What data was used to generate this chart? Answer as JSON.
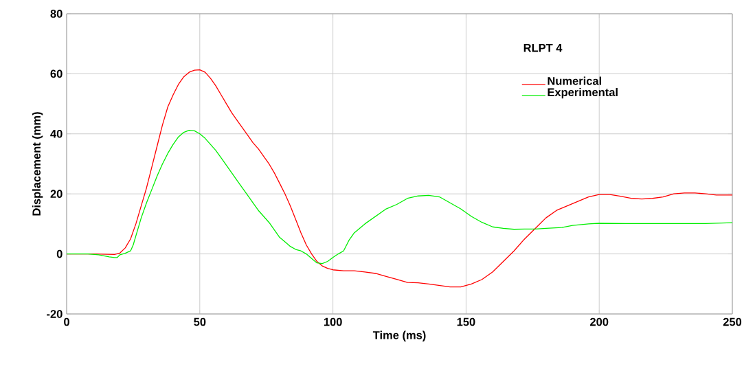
{
  "chart_data": {
    "type": "line",
    "xlabel": "Time (ms)",
    "ylabel": "Displacement (mm)",
    "legend_title": "RLPT 4",
    "xlim": [
      0,
      250
    ],
    "ylim": [
      -20,
      80
    ],
    "xticks": [
      0,
      50,
      100,
      150,
      200,
      250
    ],
    "yticks": [
      -20,
      0,
      20,
      40,
      60,
      80
    ],
    "grid": true,
    "legend": "top right",
    "marker": "none",
    "line_style": "solid",
    "series": [
      {
        "name": "Numerical",
        "color": "#ff0000",
        "x": [
          0,
          10,
          18,
          20,
          22,
          24,
          26,
          28,
          30,
          32,
          34,
          36,
          38,
          40,
          42,
          44,
          46,
          48,
          50,
          52,
          54,
          56,
          58,
          60,
          62,
          64,
          66,
          68,
          70,
          72,
          74,
          76,
          78,
          80,
          82,
          84,
          86,
          88,
          90,
          92,
          94,
          96,
          98,
          100,
          104,
          108,
          112,
          116,
          120,
          124,
          128,
          132,
          136,
          140,
          144,
          148,
          152,
          156,
          160,
          164,
          168,
          172,
          176,
          180,
          184,
          188,
          192,
          196,
          200,
          204,
          208,
          212,
          216,
          220,
          224,
          228,
          232,
          236,
          240,
          244,
          250
        ],
        "values": [
          0,
          0,
          -0.2,
          0.3,
          2,
          5,
          10,
          16,
          22,
          29,
          36,
          43,
          49,
          53,
          56.5,
          59,
          60.5,
          61.2,
          61.3,
          60.5,
          58.5,
          56,
          53,
          50,
          47,
          44.5,
          42,
          39.5,
          37,
          35,
          32.5,
          30,
          27,
          23.5,
          20,
          16,
          11.5,
          7,
          3,
          0,
          -2.5,
          -4,
          -4.8,
          -5.3,
          -5.6,
          -5.6,
          -6,
          -6.5,
          -7.5,
          -8.5,
          -9.5,
          -9.6,
          -10,
          -10.5,
          -11,
          -11,
          -10,
          -8.5,
          -6,
          -2.5,
          1,
          5,
          8.5,
          12,
          14.5,
          16,
          17.5,
          19,
          19.8,
          19.8,
          19.2,
          18.5,
          18.3,
          18.5,
          19,
          20,
          20.3,
          20.3,
          20,
          19.6,
          19.6
        ]
      },
      {
        "name": "Experimental",
        "color": "#00ee00",
        "x": [
          0,
          8,
          12,
          16,
          18,
          19,
          20,
          22,
          24,
          25,
          26,
          28,
          30,
          32,
          34,
          36,
          38,
          40,
          42,
          44,
          46,
          48,
          50,
          52,
          54,
          56,
          58,
          60,
          62,
          64,
          66,
          68,
          70,
          72,
          74,
          76,
          78,
          80,
          82,
          84,
          86,
          88,
          90,
          92,
          94,
          96,
          98,
          100,
          102,
          104,
          106,
          108,
          112,
          116,
          120,
          124,
          128,
          132,
          136,
          140,
          144,
          148,
          152,
          156,
          160,
          164,
          168,
          172,
          176,
          180,
          186,
          190,
          196,
          200,
          210,
          230,
          240,
          250
        ],
        "values": [
          0,
          0,
          -0.3,
          -1,
          -1.2,
          -1.2,
          -0.3,
          0.2,
          1,
          3,
          6,
          12,
          17,
          21.5,
          26,
          30,
          33.5,
          36.5,
          39,
          40.5,
          41.2,
          41,
          40,
          38.5,
          36.5,
          34.5,
          32,
          29.5,
          27,
          24.5,
          22,
          19.5,
          17,
          14.5,
          12.5,
          10.5,
          8,
          5.5,
          4,
          2.5,
          1.5,
          1,
          0,
          -1.5,
          -3,
          -3.2,
          -2.5,
          -1.2,
          0,
          1,
          4.5,
          7,
          10,
          12.5,
          15,
          16.5,
          18.5,
          19.3,
          19.5,
          19,
          17,
          15,
          12.5,
          10.5,
          9,
          8.5,
          8.2,
          8.3,
          8.3,
          8.5,
          8.8,
          9.5,
          10,
          10.2,
          10.1,
          10.1,
          10.1,
          10.4
        ]
      }
    ]
  }
}
